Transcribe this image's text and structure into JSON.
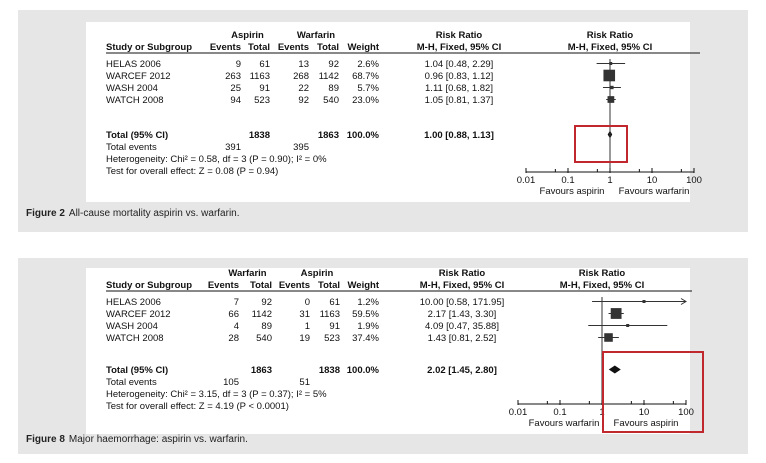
{
  "chart_data": [
    {
      "type": "forest",
      "figure_label": "Figure 2",
      "caption": "All-cause mortality aspirin vs. warfarin.",
      "header": {
        "group1": "Aspirin",
        "group2": "Warfarin",
        "study": "Study or Subgroup",
        "events": "Events",
        "total": "Total",
        "weight": "Weight",
        "rr_title": "Risk Ratio",
        "rr_method": "M-H, Fixed, 95% CI"
      },
      "studies": [
        {
          "name": "HELAS 2006",
          "e1": "9",
          "t1": "61",
          "e2": "13",
          "t2": "92",
          "weight": "2.6%",
          "rr_text": "1.04 [0.48, 2.29]",
          "rr": 1.04,
          "lo": 0.48,
          "hi": 2.29,
          "w": 2.6
        },
        {
          "name": "WARCEF 2012",
          "e1": "263",
          "t1": "1163",
          "e2": "268",
          "t2": "1142",
          "weight": "68.7%",
          "rr_text": "0.96 [0.83, 1.12]",
          "rr": 0.96,
          "lo": 0.83,
          "hi": 1.12,
          "w": 68.7
        },
        {
          "name": "WASH 2004",
          "e1": "25",
          "t1": "91",
          "e2": "22",
          "t2": "89",
          "weight": "5.7%",
          "rr_text": "1.11 [0.68, 1.82]",
          "rr": 1.11,
          "lo": 0.68,
          "hi": 1.82,
          "w": 5.7
        },
        {
          "name": "WATCH 2008",
          "e1": "94",
          "t1": "523",
          "e2": "92",
          "t2": "540",
          "weight": "23.0%",
          "rr_text": "1.05 [0.81, 1.37]",
          "rr": 1.05,
          "lo": 0.81,
          "hi": 1.37,
          "w": 23.0
        }
      ],
      "total": {
        "label": "Total (95% CI)",
        "t1": "1838",
        "t2": "1863",
        "weight": "100.0%",
        "rr_text": "1.00 [0.88, 1.13]",
        "rr": 1.0,
        "lo": 0.88,
        "hi": 1.13
      },
      "total_events": {
        "label": "Total events",
        "e1": "391",
        "e2": "395"
      },
      "heterogeneity": "Heterogeneity: Chi² = 0.58, df = 3 (P = 0.90); I² = 0%",
      "overall": "Test for overall effect: Z = 0.08 (P = 0.94)",
      "axis": {
        "scale": "log",
        "range": [
          0.01,
          100
        ],
        "ticks": [
          "0.01",
          "0.1",
          "1",
          "10",
          "100"
        ],
        "left_label": "Favours aspirin",
        "right_label": "Favours warfarin"
      },
      "highlight_color": "#c0282d"
    },
    {
      "type": "forest",
      "figure_label": "Figure 8",
      "caption": "Major haemorrhage: aspirin vs. warfarin.",
      "header": {
        "group1": "Warfarin",
        "group2": "Aspirin",
        "study": "Study or Subgroup",
        "events": "Events",
        "total": "Total",
        "weight": "Weight",
        "rr_title": "Risk Ratio",
        "rr_method": "M-H, Fixed, 95% CI"
      },
      "studies": [
        {
          "name": "HELAS 2006",
          "e1": "7",
          "t1": "92",
          "e2": "0",
          "t2": "61",
          "weight": "1.2%",
          "rr_text": "10.00 [0.58, 171.95]",
          "rr": 10.0,
          "lo": 0.58,
          "hi": 171.95,
          "w": 1.2
        },
        {
          "name": "WARCEF 2012",
          "e1": "66",
          "t1": "1142",
          "e2": "31",
          "t2": "1163",
          "weight": "59.5%",
          "rr_text": "2.17 [1.43, 3.30]",
          "rr": 2.17,
          "lo": 1.43,
          "hi": 3.3,
          "w": 59.5
        },
        {
          "name": "WASH 2004",
          "e1": "4",
          "t1": "89",
          "e2": "1",
          "t2": "91",
          "weight": "1.9%",
          "rr_text": "4.09 [0.47, 35.88]",
          "rr": 4.09,
          "lo": 0.47,
          "hi": 35.88,
          "w": 1.9
        },
        {
          "name": "WATCH 2008",
          "e1": "28",
          "t1": "540",
          "e2": "19",
          "t2": "523",
          "weight": "37.4%",
          "rr_text": "1.43 [0.81, 2.52]",
          "rr": 1.43,
          "lo": 0.81,
          "hi": 2.52,
          "w": 37.4
        }
      ],
      "total": {
        "label": "Total (95% CI)",
        "t1": "1863",
        "t2": "1838",
        "weight": "100.0%",
        "rr_text": "2.02 [1.45, 2.80]",
        "rr": 2.02,
        "lo": 1.45,
        "hi": 2.8
      },
      "total_events": {
        "label": "Total events",
        "e1": "105",
        "e2": "51"
      },
      "heterogeneity": "Heterogeneity: Chi² = 3.15, df = 3 (P = 0.37); I² = 5%",
      "overall": "Test for overall effect: Z = 4.19 (P < 0.0001)",
      "axis": {
        "scale": "log",
        "range": [
          0.01,
          100
        ],
        "ticks": [
          "0.01",
          "0.1",
          "1",
          "10",
          "100"
        ],
        "left_label": "Favours warfarin",
        "right_label": "Favours aspirin"
      },
      "highlight_color": "#c0282d"
    }
  ]
}
